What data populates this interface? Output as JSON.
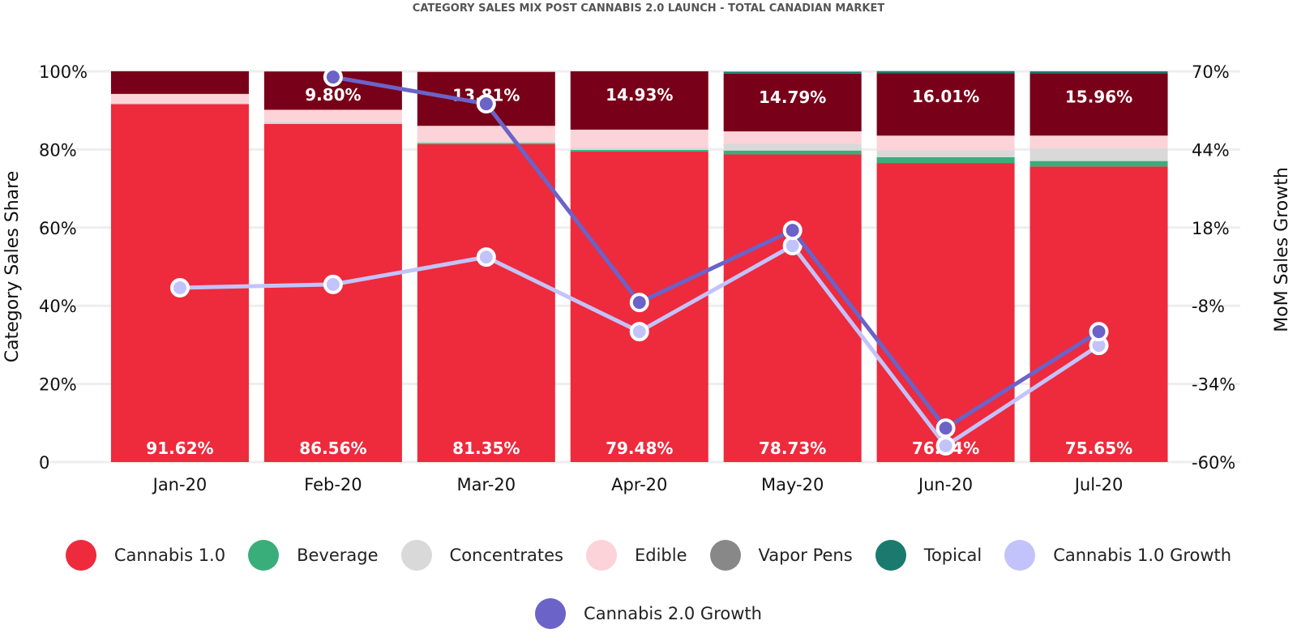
{
  "chart_data": {
    "type": "bar",
    "title": "CATEGORY SALES MIX POST CANNABIS 2.0 LAUNCH - TOTAL CANADIAN MARKET",
    "ylabel": "Category Sales Share",
    "y2label": "MoM Sales Growth",
    "ylim": [
      0,
      100
    ],
    "y2lim": [
      -60,
      70
    ],
    "yticks": [
      "0",
      "20%",
      "40%",
      "60%",
      "80%",
      "100%"
    ],
    "y2ticks": [
      "-60%",
      "-34%",
      "-8%",
      "18%",
      "44%",
      "70%"
    ],
    "categories": [
      "Jan-20",
      "Feb-20",
      "Mar-20",
      "Apr-20",
      "May-20",
      "Jun-20",
      "Jul-20"
    ],
    "stacked_series": [
      {
        "name": "Cannabis 1.0",
        "color": "#ee2a3d",
        "values": [
          91.62,
          86.56,
          81.35,
          79.48,
          78.73,
          76.54,
          75.65
        ],
        "labels": [
          "91.62%",
          "86.56%",
          "81.35%",
          "79.48%",
          "78.73%",
          "76.54%",
          "75.65%"
        ]
      },
      {
        "name": "Beverage",
        "color": "#3aae7a",
        "values": [
          0,
          0,
          0.3,
          0.4,
          1.0,
          1.5,
          1.4
        ]
      },
      {
        "name": "Concentrates",
        "color": "#d9d9d9",
        "values": [
          0.3,
          0.6,
          0.4,
          0.7,
          1.7,
          1.8,
          3.3
        ]
      },
      {
        "name": "Edible",
        "color": "#fcd3d8",
        "values": [
          2.3,
          3.0,
          4.0,
          4.5,
          3.2,
          3.7,
          3.2
        ]
      },
      {
        "name": "Vapor Pens",
        "color": "#888888",
        "bar_color": "#780018",
        "values": [
          5.8,
          9.8,
          13.81,
          14.93,
          14.79,
          16.01,
          15.96
        ],
        "labels": [
          "",
          "9.80%",
          "13.81%",
          "14.93%",
          "14.79%",
          "16.01%",
          "15.96%"
        ]
      },
      {
        "name": "Topical",
        "color": "#1a7a6e",
        "values": [
          0,
          0,
          0,
          0,
          0.5,
          0.5,
          0.5
        ]
      }
    ],
    "line_series": [
      {
        "name": "Cannabis 1.0 Growth",
        "color": "#c3c3fb",
        "values": [
          -2.0,
          -0.9,
          8.2,
          -16.6,
          12.0,
          -54.6,
          -21.2
        ]
      },
      {
        "name": "Cannabis 2.0 Growth",
        "color": "#6b63c8",
        "values": [
          null,
          68.1,
          59.2,
          -6.9,
          17.1,
          -48.7,
          -16.6
        ]
      }
    ],
    "legend_position": "bottom",
    "grid": true
  }
}
